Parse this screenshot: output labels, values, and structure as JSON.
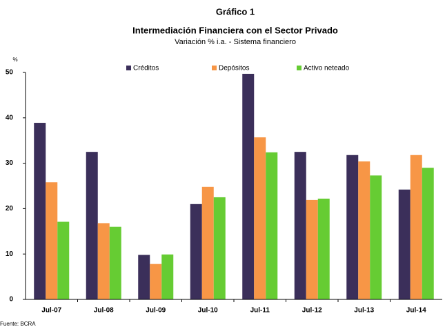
{
  "chart_data": {
    "type": "bar",
    "title": "Gráfico 1",
    "subtitle": "Intermediación Financiera con el Sector Privado",
    "subtitle2": "Variación % i.a. - Sistema financiero",
    "y_label": "%",
    "source": "Fuente: BCRA",
    "categories": [
      "Jul-07",
      "Jul-08",
      "Jul-09",
      "Jul-10",
      "Jul-11",
      "Jul-12",
      "Jul-13",
      "Jul-14"
    ],
    "series": [
      {
        "name": "Créditos",
        "color": "#3b2f5a",
        "values": [
          38.9,
          32.5,
          9.8,
          21.0,
          49.7,
          32.5,
          31.8,
          24.2
        ]
      },
      {
        "name": "Depósitos",
        "color": "#f79646",
        "values": [
          25.8,
          16.8,
          7.8,
          24.8,
          35.7,
          21.9,
          30.4,
          31.8
        ]
      },
      {
        "name": "Activo neteado",
        "color": "#66cc33",
        "values": [
          17.1,
          16.0,
          9.9,
          22.5,
          32.4,
          22.2,
          27.3,
          29.0
        ]
      }
    ],
    "ylim": [
      0,
      50
    ],
    "yticks": [
      0,
      10,
      20,
      30,
      40,
      50
    ],
    "grid": false,
    "legend": "top"
  }
}
